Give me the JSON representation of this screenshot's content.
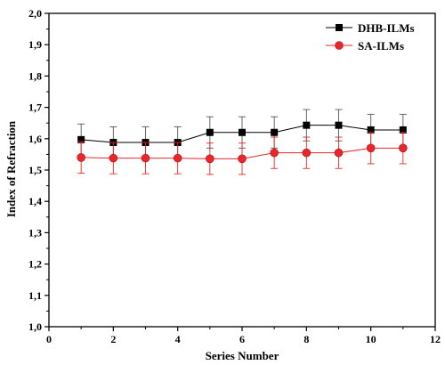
{
  "chart_data": {
    "type": "line",
    "title": "",
    "xlabel": "Series Number",
    "ylabel": "Index of Refraction",
    "xlim": [
      0,
      12
    ],
    "ylim": [
      1.0,
      2.0
    ],
    "x_ticks": [
      0,
      2,
      4,
      6,
      8,
      10,
      12
    ],
    "x_tick_labels": [
      "0",
      "2",
      "4",
      "6",
      "8",
      "10",
      "12"
    ],
    "y_ticks": [
      1.0,
      1.1,
      1.2,
      1.3,
      1.4,
      1.5,
      1.6,
      1.7,
      1.8,
      1.9,
      2.0
    ],
    "y_tick_labels": [
      "1,0",
      "1,1",
      "1,2",
      "1,3",
      "1,4",
      "1,5",
      "1,6",
      "1,7",
      "1,8",
      "1,9",
      "2,0"
    ],
    "grid": false,
    "legend_position": "top-right",
    "x": [
      1,
      2,
      3,
      4,
      5,
      6,
      7,
      8,
      9,
      10,
      11
    ],
    "series": [
      {
        "name": "DHB-ILMs",
        "color": "#000000",
        "marker": "square",
        "values": [
          1.597,
          1.588,
          1.588,
          1.588,
          1.62,
          1.62,
          1.62,
          1.643,
          1.643,
          1.628,
          1.628
        ],
        "errors": [
          0.05,
          0.05,
          0.05,
          0.05,
          0.05,
          0.05,
          0.05,
          0.05,
          0.05,
          0.05,
          0.05
        ]
      },
      {
        "name": "SA-ILMs",
        "color": "#e8262c",
        "marker": "circle",
        "values": [
          1.54,
          1.538,
          1.538,
          1.538,
          1.536,
          1.536,
          1.555,
          1.555,
          1.555,
          1.57,
          1.57
        ],
        "errors": [
          0.05,
          0.05,
          0.05,
          0.05,
          0.05,
          0.05,
          0.05,
          0.05,
          0.05,
          0.05,
          0.05
        ]
      }
    ]
  }
}
